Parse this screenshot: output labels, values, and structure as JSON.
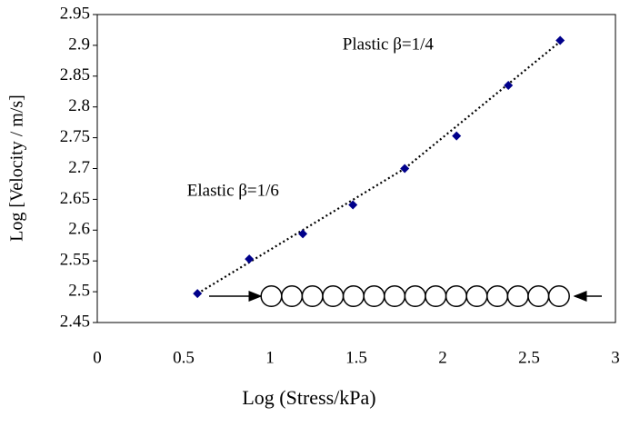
{
  "chart_data": {
    "type": "scatter",
    "x_label": "Log (Stress/kPa)",
    "y_label": "Log [Velocity / m/s]",
    "series": [
      {
        "color": "#00008b",
        "x": [
          0.58,
          0.88,
          1.19,
          1.48,
          1.78,
          2.08,
          2.38,
          2.68
        ],
        "values": [
          2.497,
          2.553,
          2.594,
          2.641,
          2.7,
          2.753,
          2.835,
          2.908
        ]
      }
    ],
    "trendlines": [
      {
        "x": [
          0.58,
          1.78
        ],
        "values": [
          2.497,
          2.7
        ]
      },
      {
        "x": [
          1.78,
          2.68
        ],
        "values": [
          2.7,
          2.906
        ]
      }
    ],
    "annotations": [
      {
        "text": "Plastic β=1/4",
        "x": 1.42,
        "y": 2.9
      },
      {
        "text": "Elastic β=1/6",
        "x": 0.52,
        "y": 2.662
      }
    ],
    "xlim": [
      0,
      3
    ],
    "xticks": [
      0,
      0.5,
      1,
      1.5,
      2,
      2.5,
      3
    ],
    "ylim": [
      2.45,
      2.95
    ],
    "yticks": [
      2.45,
      2.5,
      2.55,
      2.6,
      2.65,
      2.7,
      2.75,
      2.8,
      2.85,
      2.9,
      2.95
    ],
    "grid": false
  }
}
